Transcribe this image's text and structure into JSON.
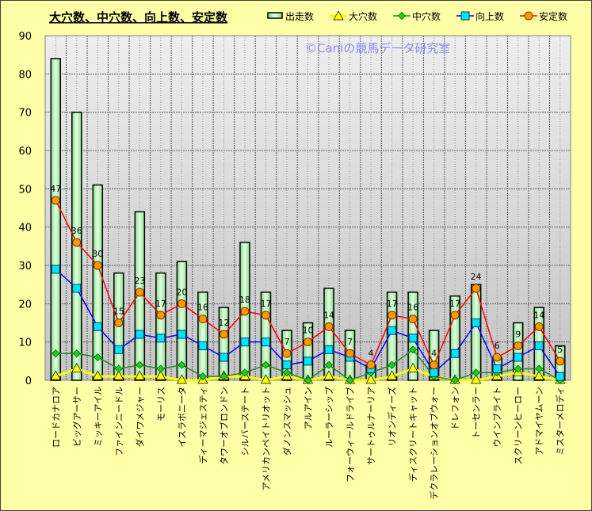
{
  "chart_data": {
    "type": "bar+line",
    "title": "大穴数、中穴数、向上数、安定数",
    "watermark": "©Caniの競馬データ研究室",
    "ylim": [
      0,
      90
    ],
    "yticks": [
      0,
      10,
      20,
      30,
      40,
      50,
      60,
      70,
      80,
      90
    ],
    "grid": true,
    "legend_position": "top-right",
    "categories": [
      "ロードカナロア",
      "ビッグアーサー",
      "ミッキーアイル",
      "ファインニードル",
      "ダイワメジャー",
      "モーリス",
      "イスラボニータ",
      "ディーマジェスティ",
      "タワーオブロンドン",
      "シルバーステート",
      "アメリカンペイトリオット",
      "ダノンスマッシュ",
      "アルアイン",
      "ルーラーシップ",
      "フォーウィールドライブ",
      "サートゥルナーリア",
      "リオンディーズ",
      "ディスクリートキャット",
      "デクラレーションオブウォー",
      "ドレフォン",
      "トーセンラー",
      "ウインブライト",
      "スクリーンヒーロー",
      "アドマイヤムーン",
      "ミスターメロディ"
    ],
    "series": [
      {
        "name": "出走数",
        "kind": "bar",
        "color": "#90EE90",
        "values": [
          84,
          70,
          51,
          28,
          44,
          28,
          31,
          23,
          19,
          36,
          23,
          13,
          15,
          24,
          13,
          4,
          23,
          23,
          13,
          22,
          25,
          6,
          15,
          19,
          9
        ]
      },
      {
        "name": "大穴数",
        "kind": "line",
        "marker": "triangle",
        "color": "#FFFF00",
        "values": [
          1,
          3,
          1,
          1,
          1,
          1,
          0,
          0,
          1,
          1,
          0,
          1,
          0,
          1,
          0,
          0,
          1,
          3,
          1,
          0,
          0,
          1,
          2,
          1,
          0
        ]
      },
      {
        "name": "中穴数",
        "kind": "line",
        "marker": "diamond",
        "color": "#228B22",
        "values": [
          7,
          7,
          6,
          3,
          4,
          3,
          4,
          1,
          1,
          2,
          4,
          2,
          0,
          4,
          0,
          2,
          4,
          8,
          1,
          0,
          2,
          2,
          3,
          3,
          0
        ]
      },
      {
        "name": "向上数",
        "kind": "line",
        "marker": "square",
        "color": "#0000FF",
        "values": [
          29,
          24,
          14,
          8,
          12,
          11,
          12,
          9,
          6,
          10,
          10,
          4,
          5,
          8,
          6,
          3,
          13,
          11,
          2,
          7,
          15,
          3,
          6,
          9,
          1
        ]
      },
      {
        "name": "安定数",
        "kind": "line",
        "marker": "circle",
        "color": "#FF0000",
        "labeled": true,
        "values": [
          47,
          36,
          30,
          15,
          23,
          17,
          20,
          16,
          12,
          18,
          17,
          7,
          10,
          14,
          7,
          4,
          17,
          16,
          4,
          17,
          24,
          6,
          9,
          14,
          5
        ]
      }
    ]
  }
}
